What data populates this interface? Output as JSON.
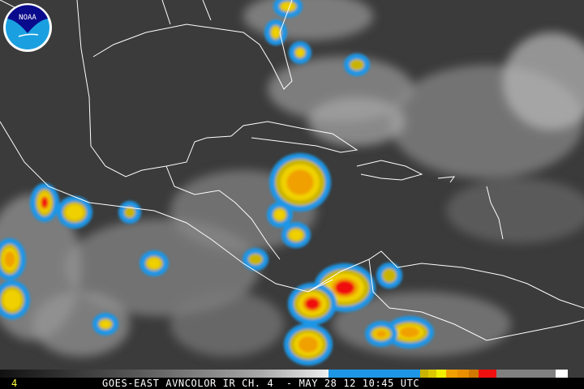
{
  "logo": {
    "text": "NOAA",
    "colors": {
      "top": "#0a0a8c",
      "bottom": "#1aa0e0",
      "ring": "#ffffff"
    }
  },
  "footer": {
    "channel": "4",
    "caption": "GOES-EAST AVNCOLOR IR CH. 4  - MAY 28 12 10:45 UTC"
  },
  "colorbar": {
    "segments": [
      "grayscale",
      "#1e96e6",
      "#c8b400",
      "#f0f000",
      "#f0a000",
      "#e08000",
      "#f01010",
      "#808080",
      "#ffffff"
    ]
  },
  "colors": {
    "land_outline": "#ffffff",
    "background": "#3b3b3b"
  }
}
